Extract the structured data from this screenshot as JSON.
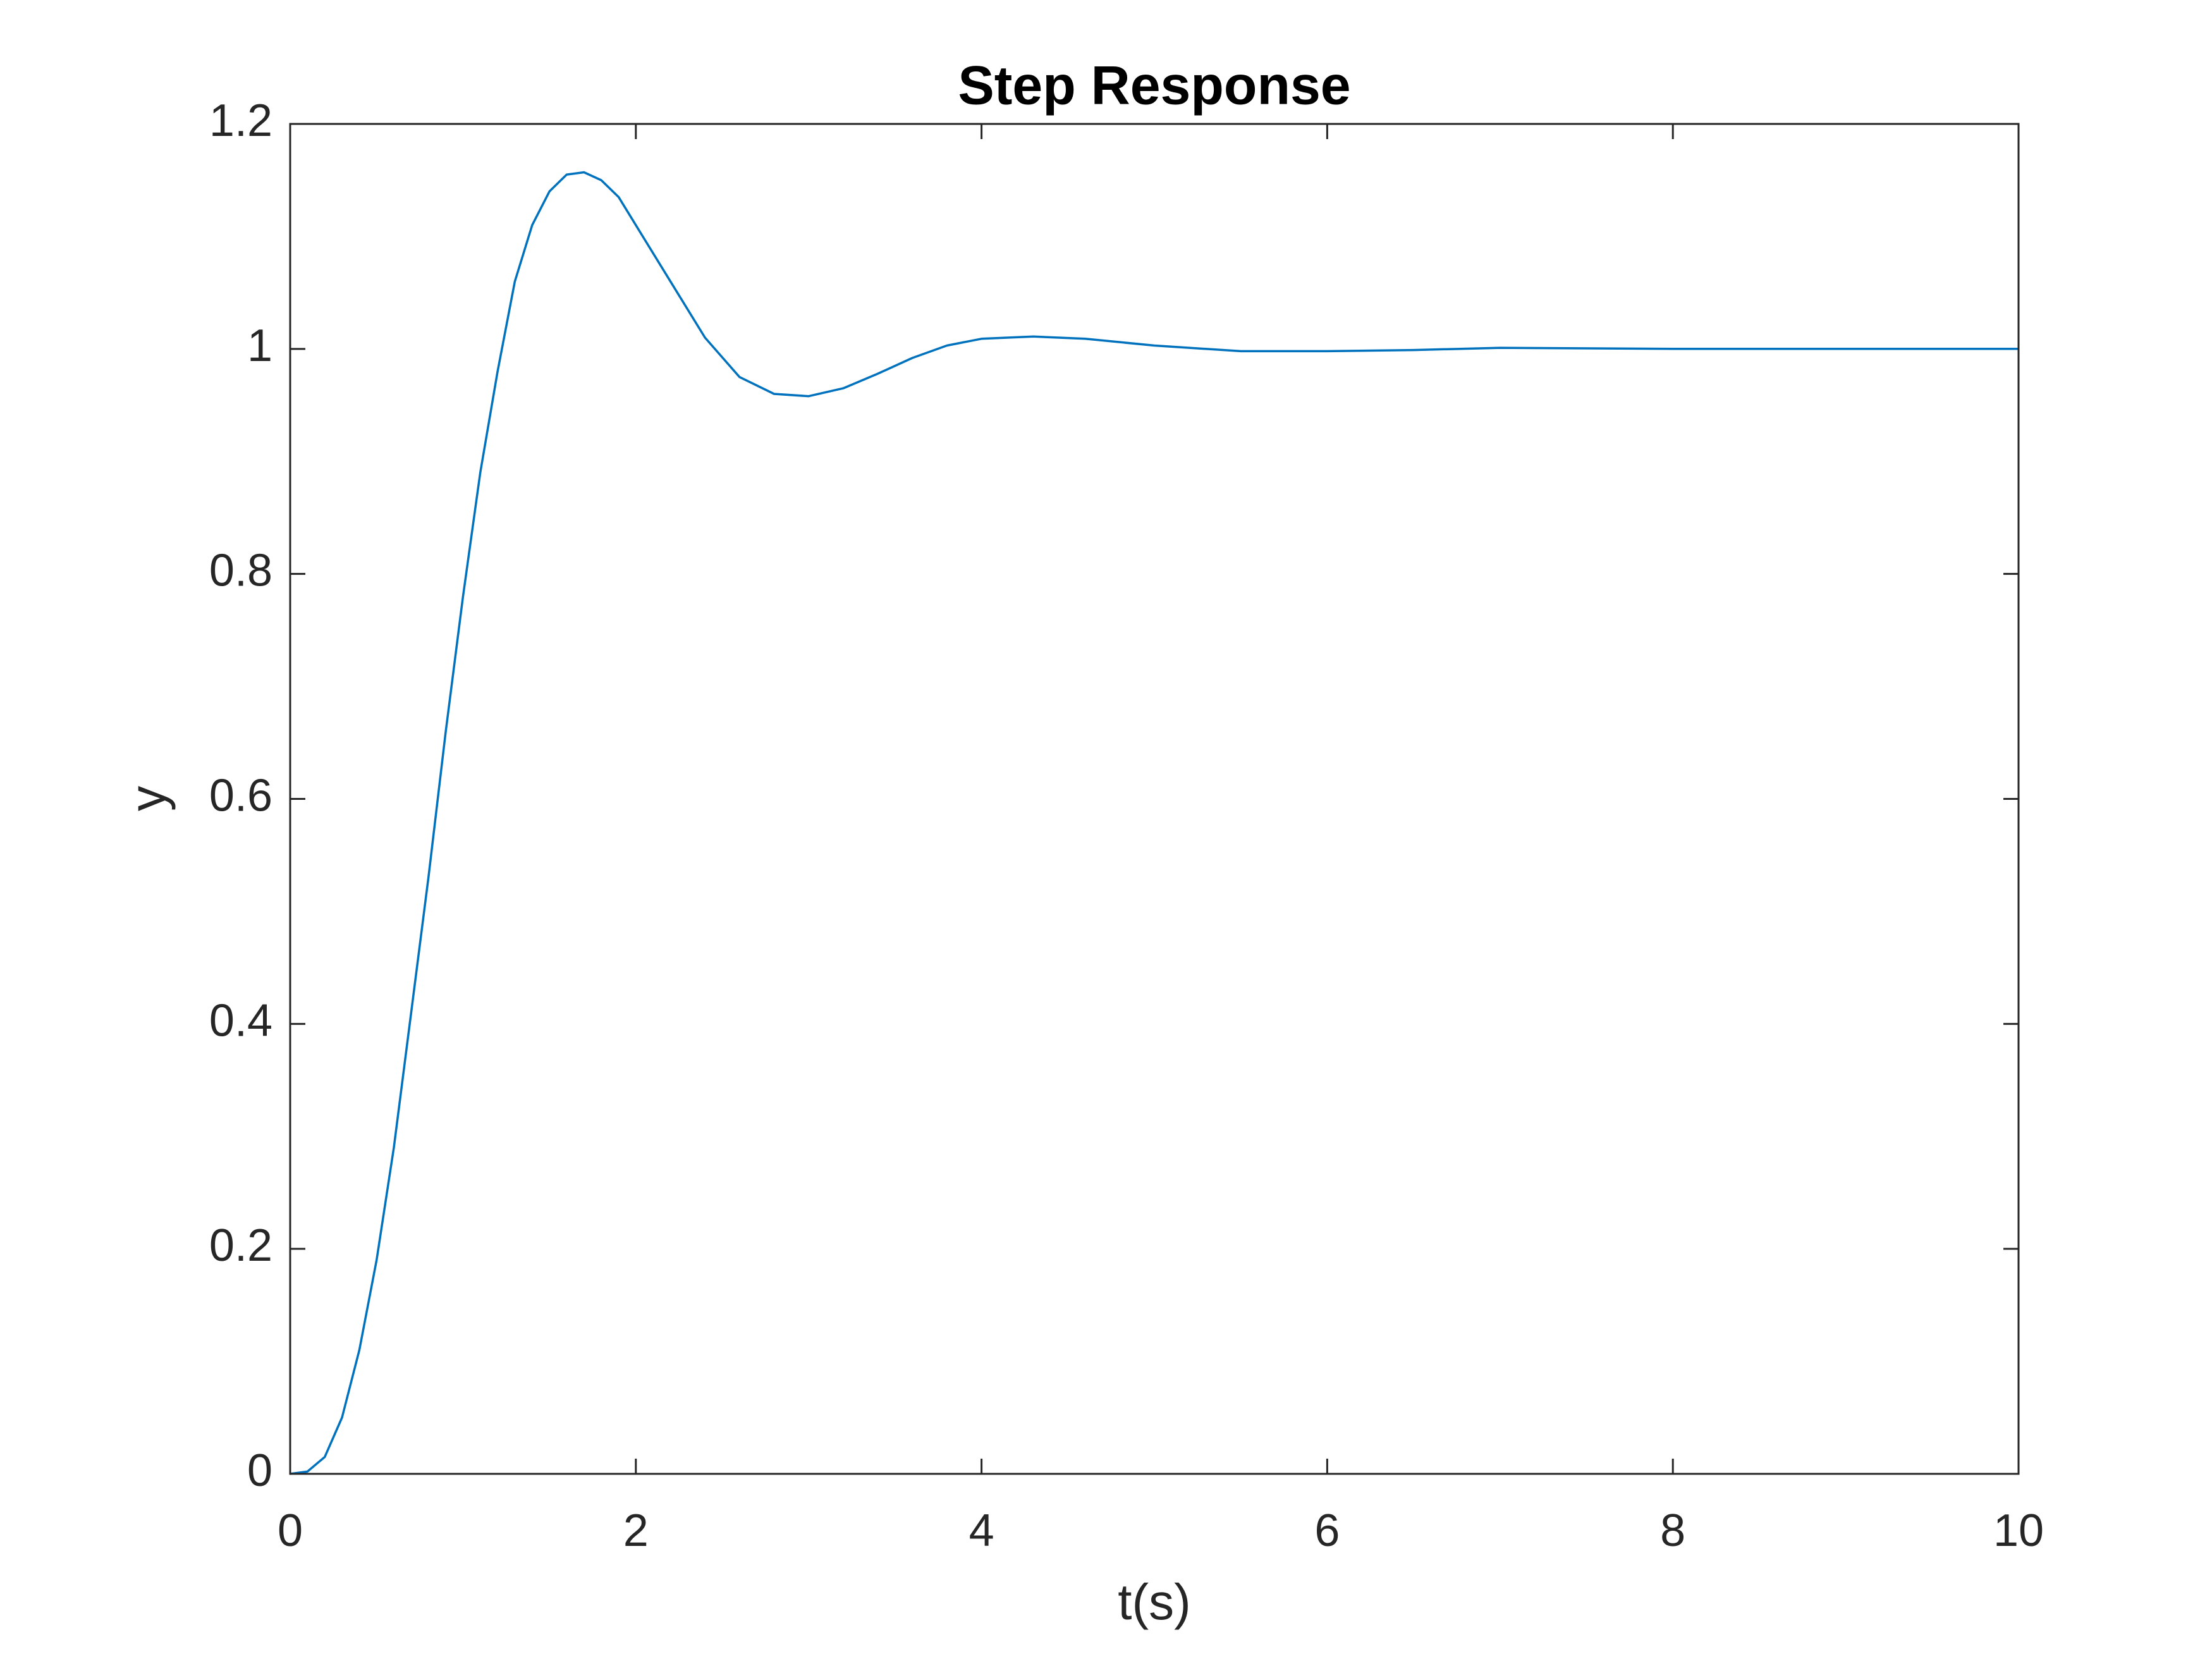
{
  "chart_data": {
    "type": "line",
    "title": "Step Response",
    "x_label": "t(s)",
    "y_label": "y",
    "x": [
      0,
      0.1,
      0.2,
      0.3,
      0.4,
      0.5,
      0.6,
      0.7,
      0.8,
      0.9,
      1.0,
      1.1,
      1.2,
      1.3,
      1.4,
      1.5,
      1.6,
      1.7,
      1.8,
      1.9,
      2.0,
      2.2,
      2.4,
      2.6,
      2.8,
      3.0,
      3.2,
      3.4,
      3.6,
      3.8,
      4.0,
      4.3,
      4.6,
      5.0,
      5.5,
      6.0,
      6.5,
      7.0,
      8.0,
      9.0,
      10.0
    ],
    "series": [
      {
        "name": "y",
        "color": "#0072bd",
        "values": [
          0,
          0.002,
          0.015,
          0.05,
          0.11,
          0.19,
          0.29,
          0.41,
          0.53,
          0.66,
          0.78,
          0.89,
          0.98,
          1.06,
          1.11,
          1.14,
          1.155,
          1.157,
          1.15,
          1.135,
          1.11,
          1.06,
          1.01,
          0.975,
          0.96,
          0.958,
          0.965,
          0.978,
          0.992,
          1.003,
          1.009,
          1.011,
          1.009,
          1.003,
          0.998,
          0.998,
          0.999,
          1.001,
          1.0,
          1.0,
          1.0
        ]
      }
    ],
    "xlim": [
      0,
      10
    ],
    "xticks": [
      0,
      2,
      4,
      6,
      8,
      10
    ],
    "ylim": [
      0,
      1.2
    ],
    "yticks": [
      0,
      0.2,
      0.4,
      0.6,
      0.8,
      1,
      1.2
    ],
    "grid": false
  }
}
